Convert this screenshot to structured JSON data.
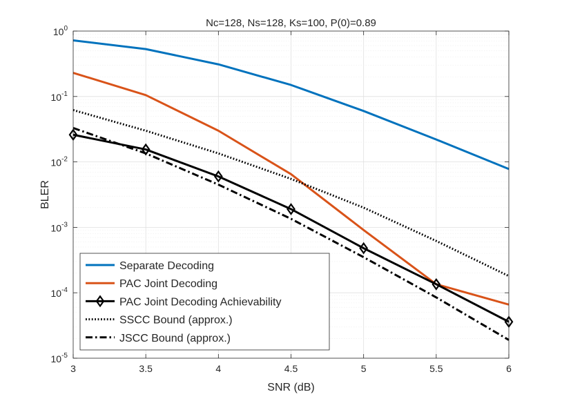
{
  "chart_data": {
    "type": "line",
    "title": "Nc=128, Ns=128, Ks=100, P(0)=0.89",
    "xlabel": "SNR (dB)",
    "ylabel": "BLER",
    "xlim": [
      3,
      6
    ],
    "ylim": [
      1e-05,
      1
    ],
    "yscale": "log",
    "grid": true,
    "legend_position": "bottom-left",
    "x": [
      3,
      3.5,
      4,
      4.5,
      5,
      5.5,
      6
    ],
    "x_tick_labels": [
      "3",
      "3.5",
      "4",
      "4.5",
      "5",
      "5.5",
      "6"
    ],
    "y_ticks": [
      {
        "base": "10",
        "exp": "0",
        "value": 1
      },
      {
        "base": "10",
        "exp": "-1",
        "value": 0.1
      },
      {
        "base": "10",
        "exp": "-2",
        "value": 0.01
      },
      {
        "base": "10",
        "exp": "-3",
        "value": 0.001
      },
      {
        "base": "10",
        "exp": "-4",
        "value": 0.0001
      },
      {
        "base": "10",
        "exp": "-5",
        "value": 1e-05
      }
    ],
    "series": [
      {
        "name": "Separate Decoding",
        "color": "#0072BD",
        "dash": "solid",
        "marker": "none",
        "values": [
          0.72,
          0.53,
          0.31,
          0.15,
          0.06,
          0.022,
          0.0078
        ]
      },
      {
        "name": "PAC Joint Decoding",
        "color": "#D95319",
        "dash": "solid",
        "marker": "none",
        "values": [
          0.23,
          0.105,
          0.03,
          0.0065,
          0.00091,
          0.000135,
          6.6e-05
        ]
      },
      {
        "name": "PAC Joint Decoding Achievability",
        "color": "#000000",
        "dash": "solid",
        "marker": "diamond",
        "values": [
          0.026,
          0.0155,
          0.006,
          0.0019,
          0.00048,
          0.000135,
          3.6e-05
        ]
      },
      {
        "name": "SSCC Bound (approx.)",
        "color": "#000000",
        "dash": "dotted",
        "marker": "none",
        "values": [
          0.062,
          0.03,
          0.0135,
          0.0055,
          0.002,
          0.00062,
          0.00018
        ]
      },
      {
        "name": "JSCC Bound (approx.)",
        "color": "#000000",
        "dash": "dashdot",
        "marker": "none",
        "values": [
          0.033,
          0.0135,
          0.0045,
          0.00135,
          0.00035,
          8.5e-05,
          1.9e-05
        ]
      }
    ]
  }
}
